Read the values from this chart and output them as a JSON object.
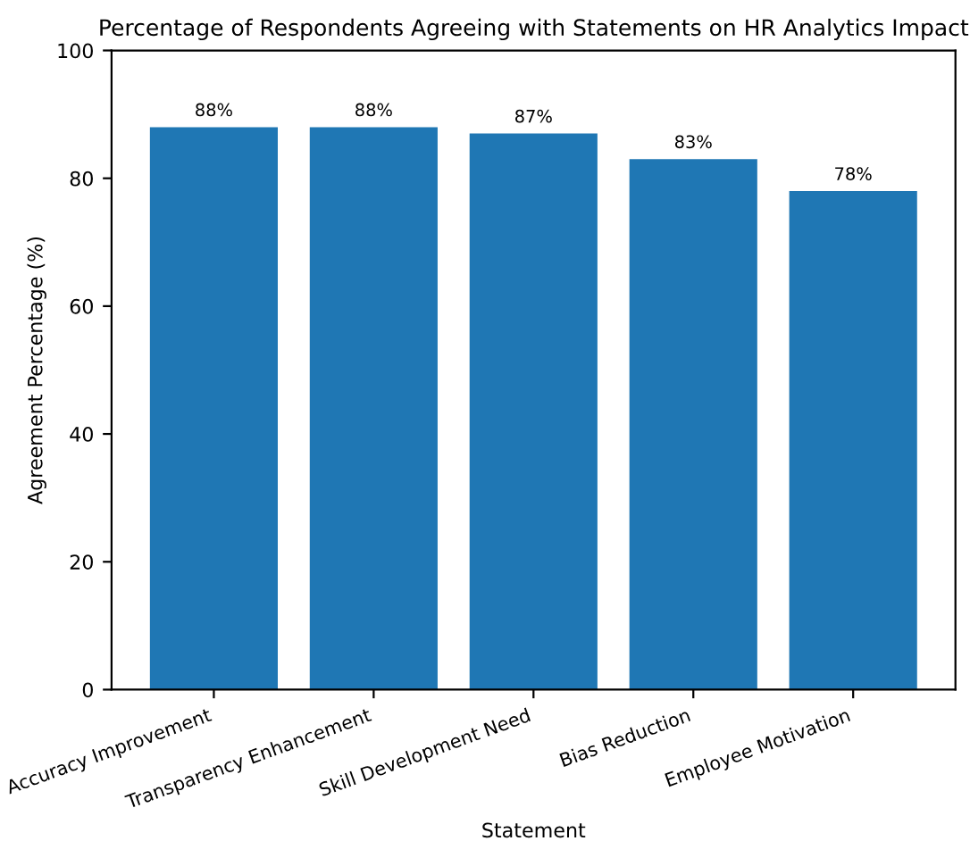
{
  "chart_data": {
    "type": "bar",
    "title": "Percentage of Respondents Agreeing with Statements on HR Analytics Impact",
    "xlabel": "Statement",
    "ylabel": "Agreement Percentage (%)",
    "categories": [
      "Accuracy Improvement",
      "Transparency Enhancement",
      "Skill Development Need",
      "Bias Reduction",
      "Employee Motivation"
    ],
    "values": [
      88,
      88,
      87,
      83,
      78
    ],
    "value_labels": [
      "88%",
      "88%",
      "87%",
      "83%",
      "78%"
    ],
    "color": "#1f77b4",
    "ylim": [
      0,
      100
    ],
    "yticks": [
      0,
      20,
      40,
      60,
      80,
      100
    ],
    "grid": false,
    "legend": false
  }
}
